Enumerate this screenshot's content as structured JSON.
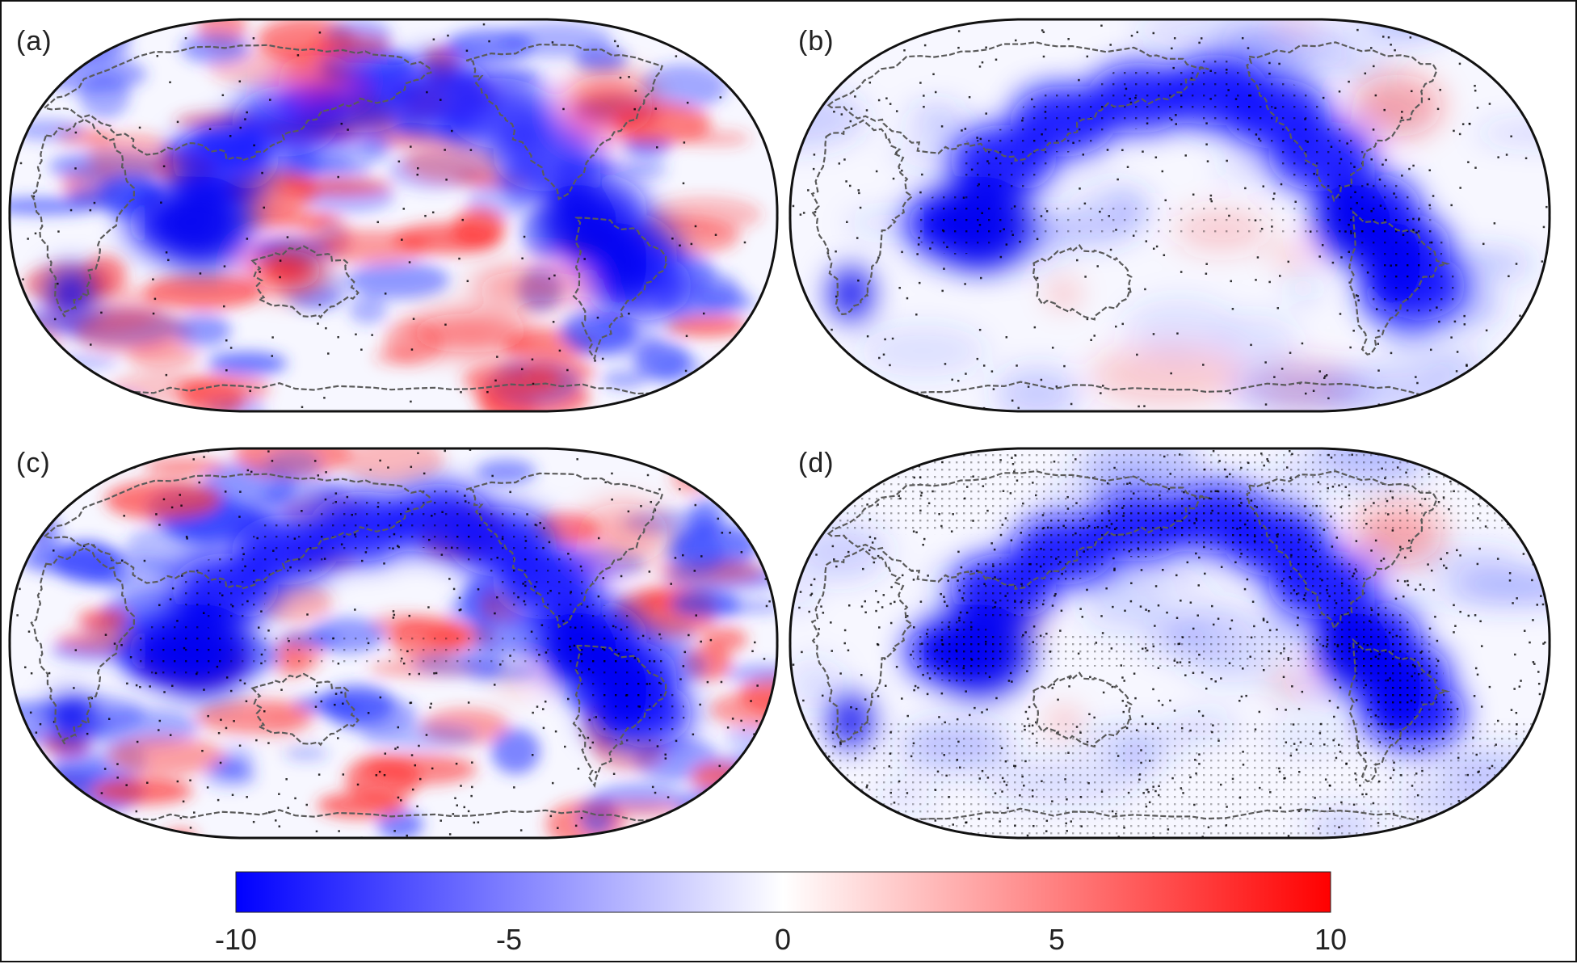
{
  "panels": [
    {
      "label": "(a)",
      "pattern": "noisy-mixed"
    },
    {
      "label": "(b)",
      "pattern": "smooth-blue-arc"
    },
    {
      "label": "(c)",
      "pattern": "noisy-mixed-blue-arc"
    },
    {
      "label": "(d)",
      "pattern": "smooth-blue-arc-dense-stipple"
    }
  ],
  "projection": "robinson",
  "colorbar": {
    "min": -10,
    "max": 10,
    "ticks": [
      "-10",
      "-5",
      "0",
      "5",
      "10"
    ],
    "tick_values": [
      -10,
      -5,
      0,
      5,
      10
    ],
    "low_color": "#0000ff",
    "mid_color": "#ffffff",
    "high_color": "#ff0000"
  },
  "colors": {
    "coastline": "#5a5a5a",
    "outline": "#111111",
    "stipple": "#000000"
  }
}
